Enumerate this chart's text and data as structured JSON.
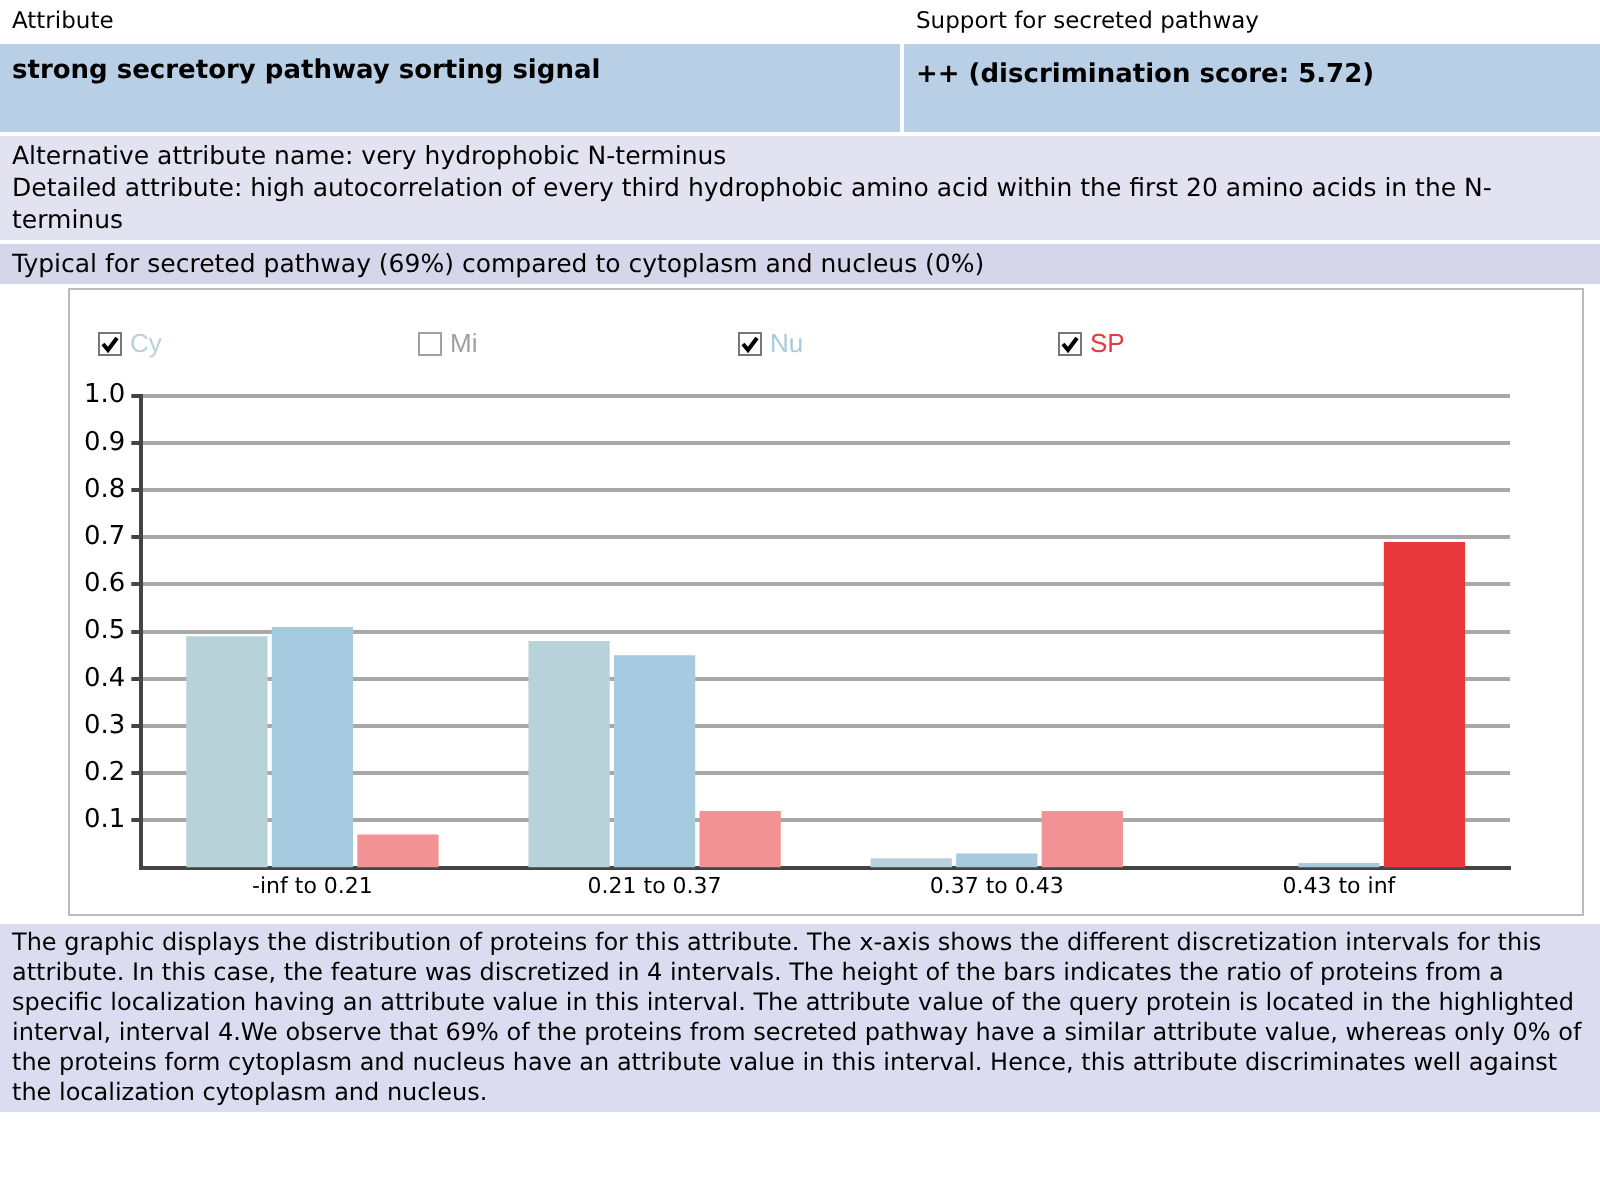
{
  "chart_data": {
    "type": "bar",
    "categories": [
      "-inf to 0.21",
      "0.21 to 0.37",
      "0.37 to 0.43",
      "0.43 to inf"
    ],
    "series": [
      {
        "name": "Cy",
        "color": "#b8d2da",
        "values": [
          0.49,
          0.48,
          0.02,
          0
        ]
      },
      {
        "name": "Mi",
        "color": "#a0a0a0",
        "values": [
          null,
          null,
          null,
          null
        ]
      },
      {
        "name": "Nu",
        "color": "#a6cbe0",
        "values": [
          0.51,
          0.45,
          0.03,
          0.01
        ]
      },
      {
        "name": "SP",
        "color": "#e8383c",
        "colors": [
          "#f29294",
          "#f29294",
          "#f29294",
          "#e8383c"
        ],
        "values": [
          0.07,
          0.12,
          0.12,
          0.69
        ]
      }
    ],
    "ylim": [
      0,
      1
    ],
    "yticks": [
      0.1,
      0.2,
      0.3,
      0.4,
      0.5,
      0.6,
      0.7,
      0.8,
      0.9,
      {
        "value": 1,
        "label": "1.0"
      }
    ],
    "grid": "y",
    "legend": "top left",
    "annotations": [
      "Attribute",
      "Support for secreted pathway",
      "strong secretory pathway sorting signal",
      "++ (discrimination score: 5.72)",
      "Alternative attribute name: very hydrophobic N-terminus",
      "Detailed attribute: high autocorrelation of every third hydrophobic amino acid within the first 20 amino acids in the N-terminus",
      "Typical for secreted pathway (69%) compared to cytoplasm and nucleus (0%)",
      "The graphic displays the distribution of proteins for this attribute. The x-axis shows the different discretization intervals for this attribute. In this case, the feature was discretized in 4 intervals. The height of the bars indicates the ratio of proteins from a specific localization having an attribute value in this interval. The attribute value of the query protein is located in the highlighted interval, interval 4.We observe that 69% of the proteins from secreted pathway have a similar attribute value, whereas only 0% of the proteins form cytoplasm and nucleus have an attribute value in this interval. Hence, this attribute discriminates well against the localization cytoplasm and nucleus."
    ]
  }
}
